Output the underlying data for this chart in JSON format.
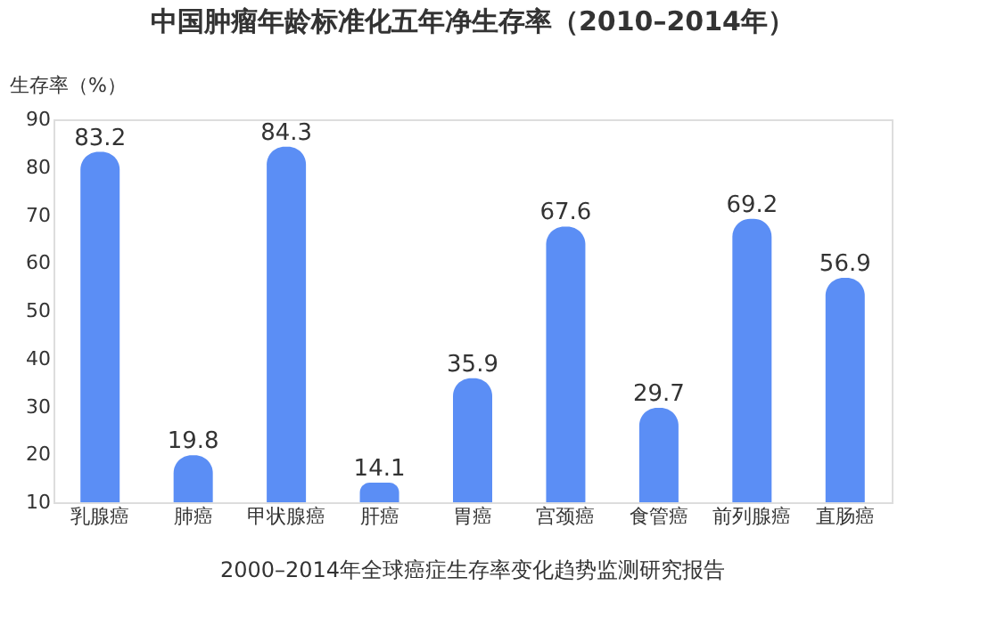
{
  "chart_data": {
    "type": "bar",
    "title": "中国肿瘤年龄标准化五年净生存率（2010–2014年）",
    "ylabel": "生存率（%）",
    "categories": [
      "乳腺癌",
      "肺癌",
      "甲状腺癌",
      "肝癌",
      "胃癌",
      "宫颈癌",
      "食管癌",
      "前列腺癌",
      "直肠癌"
    ],
    "values": [
      83.2,
      19.8,
      84.3,
      14.1,
      35.9,
      67.6,
      29.7,
      69.2,
      56.9
    ],
    "color": "#5b8ef5",
    "ylim": [
      10,
      90
    ],
    "yticks": [
      10,
      20,
      30,
      40,
      50,
      60,
      70,
      80,
      90
    ],
    "grid": false,
    "data_labels": true,
    "annotations": [
      "2000–2014年全球癌症生存率变化趋势监测研究报告"
    ]
  }
}
